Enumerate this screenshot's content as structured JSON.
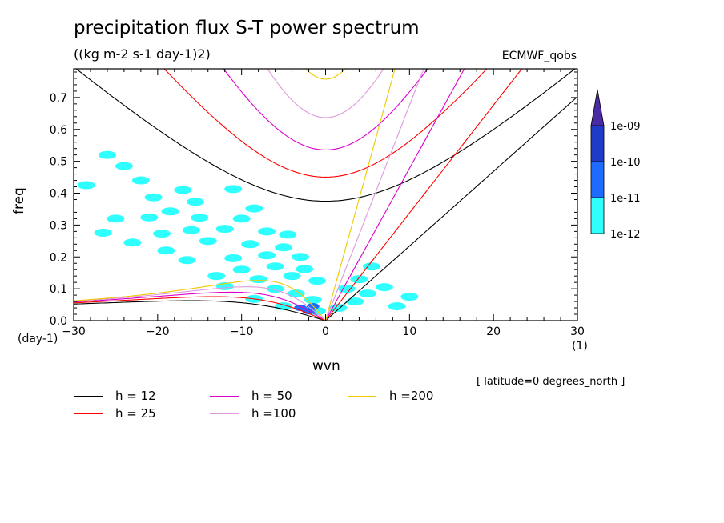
{
  "header": {
    "title": "precipitation flux S-T power spectrum",
    "subtitle": "((kg m-2 s-1 day-1)2)",
    "source": "ECMWF_qobs"
  },
  "axes": {
    "xlabel": "wvn",
    "ylabel": "freq",
    "xunit": "(1)",
    "yunit": "(day-1)"
  },
  "note": "[ latitude=0 degrees_north ]",
  "chart_data": {
    "type": "heatmap",
    "title": "precipitation flux S-T power spectrum",
    "subtitle": "((kg m-2 s-1 day-1)2)",
    "xlabel": "wvn",
    "ylabel": "freq",
    "xlim": [
      -30,
      30
    ],
    "ylim": [
      0,
      0.79
    ],
    "x_ticks": [
      -30,
      -20,
      -10,
      0,
      10,
      20,
      30
    ],
    "y_ticks": [
      0.0,
      0.1,
      0.2,
      0.3,
      0.4,
      0.5,
      0.6,
      0.7
    ],
    "grid": false,
    "colorbar": {
      "levels": [
        "1e-12",
        "1e-11",
        "1e-10",
        "1e-09"
      ],
      "colors": [
        "#30ffff",
        "#1e6cff",
        "#1f3cc8",
        "#4b2ba3"
      ]
    },
    "dispersion_curves": [
      {
        "name": "h = 12",
        "h": 12,
        "color": "#000000"
      },
      {
        "name": "h = 25",
        "h": 25,
        "color": "#ff0000"
      },
      {
        "name": "h = 50",
        "h": 50,
        "color": "#dd00cc"
      },
      {
        "name": "h =100",
        "h": 100,
        "color": "#dd99dd"
      },
      {
        "name": "h =200",
        "h": 200,
        "color": "#f0c800"
      }
    ],
    "blobs": [
      {
        "x": -20.5,
        "y": 0.387,
        "level": 0
      },
      {
        "x": -17,
        "y": 0.41,
        "level": 0
      },
      {
        "x": -11,
        "y": 0.413,
        "level": 0
      },
      {
        "x": -15.5,
        "y": 0.373,
        "level": 0
      },
      {
        "x": -8.5,
        "y": 0.352,
        "level": 0
      },
      {
        "x": -18.5,
        "y": 0.343,
        "level": 0
      },
      {
        "x": -21,
        "y": 0.324,
        "level": 0
      },
      {
        "x": -15,
        "y": 0.323,
        "level": 0
      },
      {
        "x": -10,
        "y": 0.32,
        "level": 0
      },
      {
        "x": -16,
        "y": 0.284,
        "level": 0
      },
      {
        "x": -12,
        "y": 0.288,
        "level": 0
      },
      {
        "x": -7,
        "y": 0.28,
        "level": 0
      },
      {
        "x": -19.5,
        "y": 0.273,
        "level": 0
      },
      {
        "x": -4.5,
        "y": 0.27,
        "level": 0
      },
      {
        "x": -14,
        "y": 0.25,
        "level": 0
      },
      {
        "x": -9,
        "y": 0.24,
        "level": 0
      },
      {
        "x": -5,
        "y": 0.23,
        "level": 0
      },
      {
        "x": -7,
        "y": 0.205,
        "level": 0
      },
      {
        "x": -11,
        "y": 0.196,
        "level": 0
      },
      {
        "x": -3,
        "y": 0.2,
        "level": 0
      },
      {
        "x": -16.5,
        "y": 0.19,
        "level": 0
      },
      {
        "x": -6,
        "y": 0.17,
        "level": 0
      },
      {
        "x": -2.5,
        "y": 0.162,
        "level": 0
      },
      {
        "x": -10,
        "y": 0.16,
        "level": 0
      },
      {
        "x": -13,
        "y": 0.14,
        "level": 0
      },
      {
        "x": -4,
        "y": 0.14,
        "level": 0
      },
      {
        "x": -8,
        "y": 0.13,
        "level": 0
      },
      {
        "x": -1,
        "y": 0.125,
        "level": 0
      },
      {
        "x": -12,
        "y": 0.108,
        "level": 0
      },
      {
        "x": -6,
        "y": 0.1,
        "level": 0
      },
      {
        "x": -3.5,
        "y": 0.085,
        "level": 0
      },
      {
        "x": -8.5,
        "y": 0.068,
        "level": 0
      },
      {
        "x": -1.5,
        "y": 0.065,
        "level": 0
      },
      {
        "x": -5,
        "y": 0.045,
        "level": 0
      },
      {
        "x": -1,
        "y": 0.03,
        "level": 0
      },
      {
        "x": 1.5,
        "y": 0.04,
        "level": 0
      },
      {
        "x": 3.5,
        "y": 0.06,
        "level": 0
      },
      {
        "x": 5,
        "y": 0.085,
        "level": 0
      },
      {
        "x": 2.5,
        "y": 0.1,
        "level": 0
      },
      {
        "x": 7,
        "y": 0.105,
        "level": 0
      },
      {
        "x": 4,
        "y": 0.13,
        "level": 0
      },
      {
        "x": 5.5,
        "y": 0.17,
        "level": 0
      },
      {
        "x": 8.5,
        "y": 0.045,
        "level": 0
      },
      {
        "x": 10,
        "y": 0.075,
        "level": 0
      },
      {
        "x": -23,
        "y": 0.245,
        "level": 0
      },
      {
        "x": -19,
        "y": 0.22,
        "level": 0
      },
      {
        "x": -26,
        "y": 0.52,
        "level": 0
      },
      {
        "x": -24,
        "y": 0.485,
        "level": 0
      },
      {
        "x": -22,
        "y": 0.44,
        "level": 0
      },
      {
        "x": -28.5,
        "y": 0.425,
        "level": 0
      },
      {
        "x": -25,
        "y": 0.32,
        "level": 0
      },
      {
        "x": -26.5,
        "y": 0.276,
        "level": 0
      },
      {
        "x": -3,
        "y": 0.04,
        "level": 1
      },
      {
        "x": -2,
        "y": 0.03,
        "level": 1
      },
      {
        "x": -1.5,
        "y": 0.045,
        "level": 1
      }
    ]
  }
}
